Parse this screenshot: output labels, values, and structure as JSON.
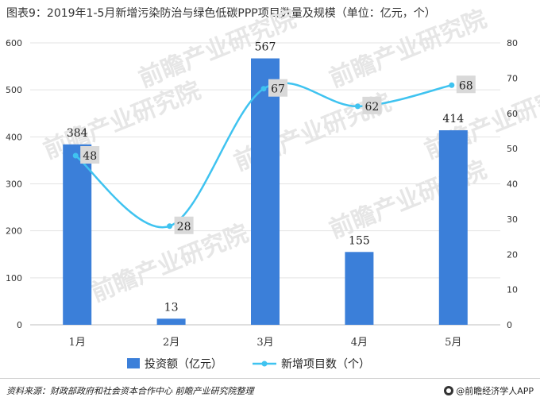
{
  "title": "图表9：2019年1-5月新增污染防治与绿色低碳PPP项目数量及规模（单位：亿元，个）",
  "source": "资料来源：财政部政府和社会资本合作中心  前瞻产业研究院整理",
  "brand": "@前瞻经济学人APP",
  "watermark": "前瞻产业研究院",
  "chart_data": {
    "type": "bar",
    "categories": [
      "1月",
      "2月",
      "3月",
      "4月",
      "5月"
    ],
    "series": [
      {
        "name": "投资额（亿元）",
        "kind": "bar",
        "axis": "left",
        "color": "#3b7fd9",
        "values": [
          384,
          13,
          567,
          155,
          414
        ]
      },
      {
        "name": "新增项目数（个）",
        "kind": "line",
        "axis": "right",
        "color": "#3fc3f0",
        "values": [
          48,
          28,
          67,
          62,
          68
        ]
      }
    ],
    "left_axis": {
      "ylim": [
        0,
        600
      ],
      "ticks": [
        0,
        100,
        200,
        300,
        400,
        500,
        600
      ]
    },
    "right_axis": {
      "ylim": [
        0,
        80
      ],
      "ticks": [
        0,
        10,
        20,
        30,
        40,
        50,
        60,
        70,
        80
      ]
    },
    "grid": true,
    "legend": "bottom"
  }
}
